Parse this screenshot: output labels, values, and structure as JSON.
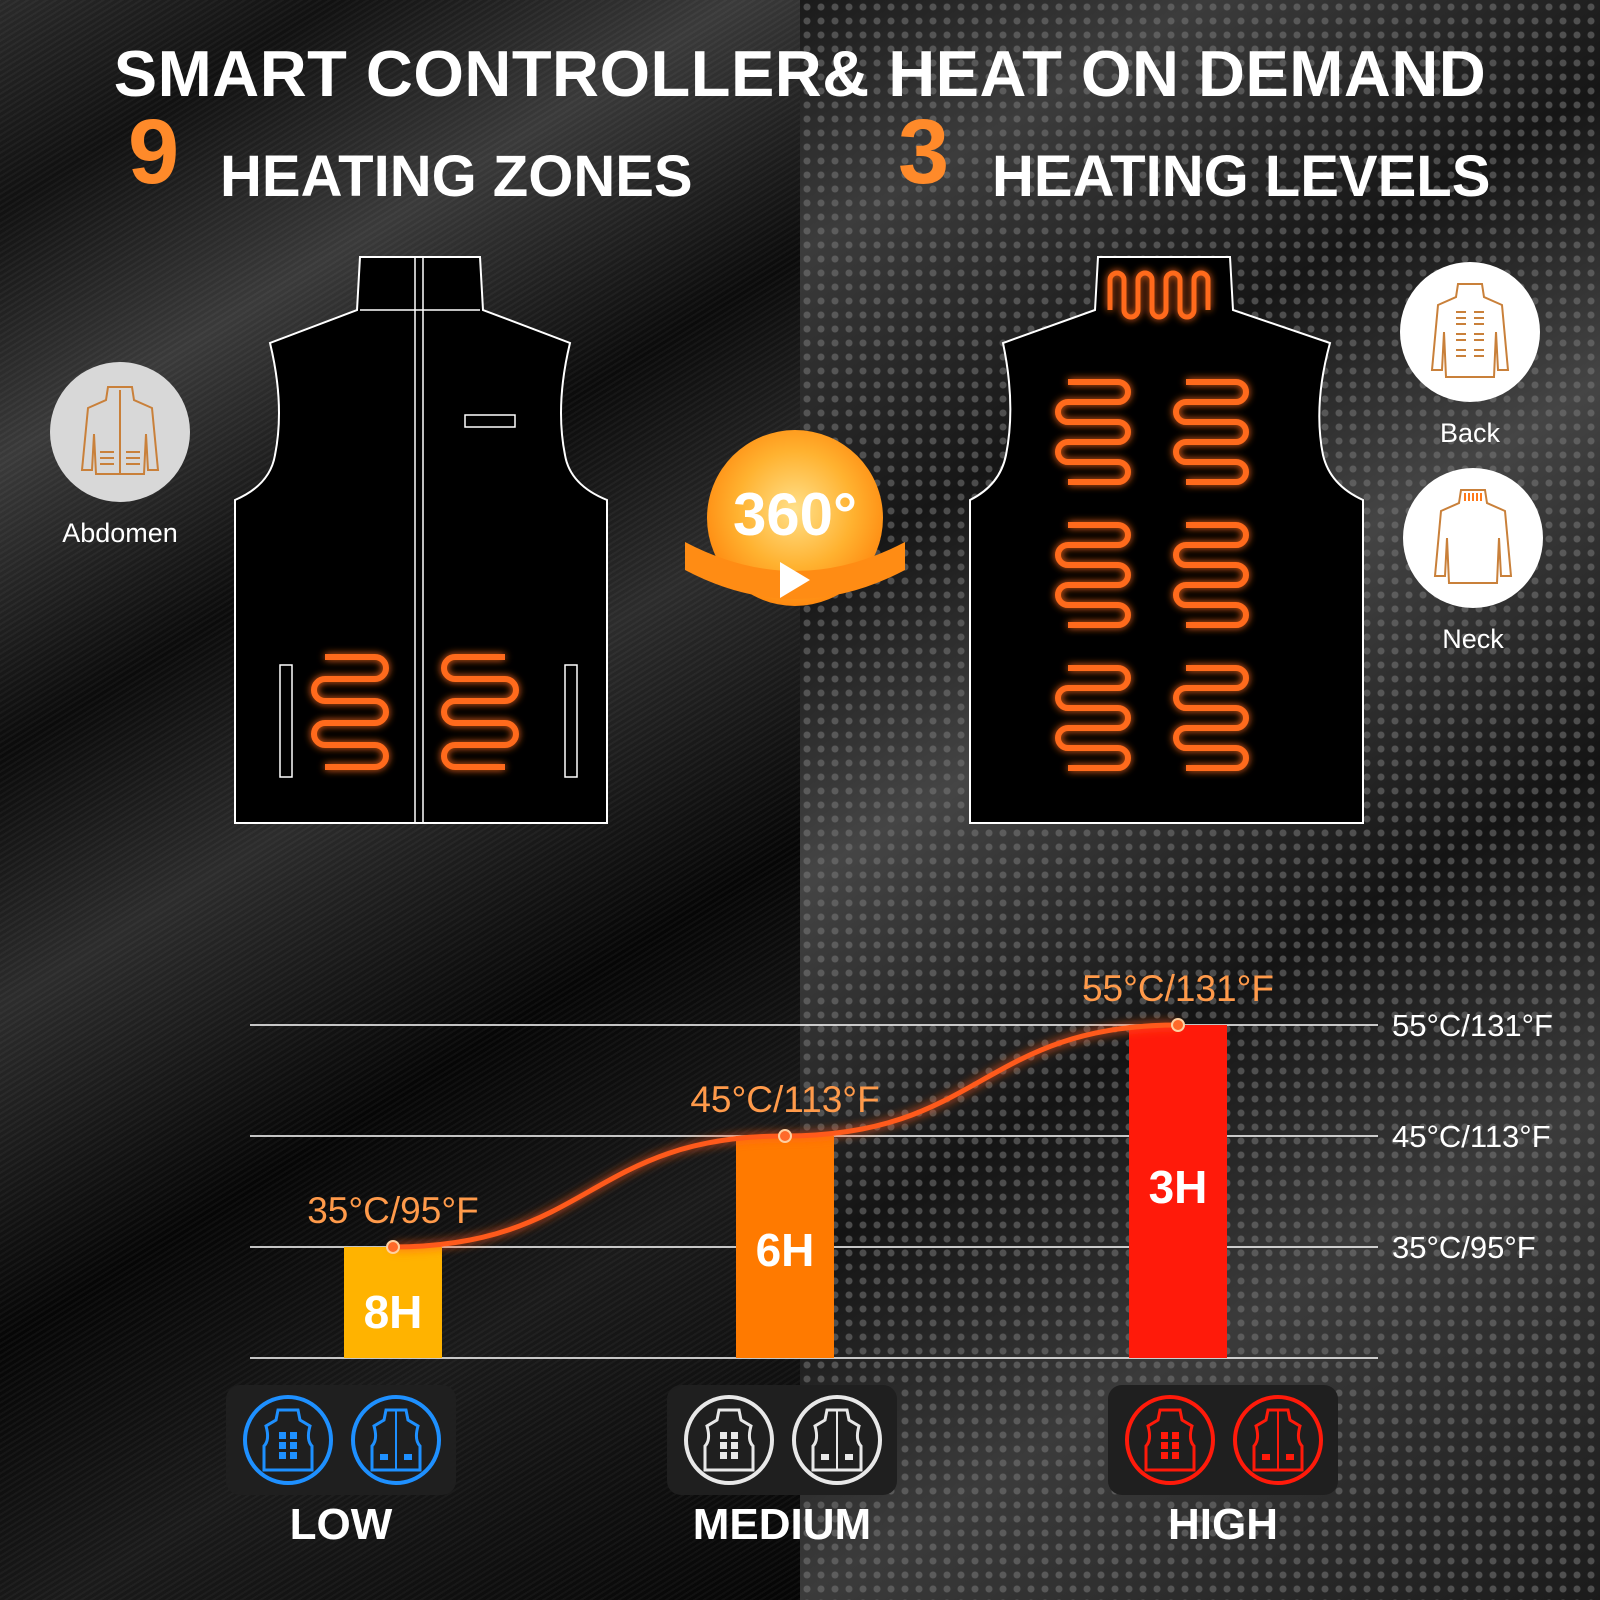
{
  "title": "SMART CONTROLLER& HEAT ON DEMAND",
  "zones": {
    "number": "9",
    "label": "HEATING ZONES"
  },
  "levels_header": {
    "number": "3",
    "label": "HEATING LEVELS"
  },
  "badge_360": "360°",
  "zone_badges": [
    {
      "label": "Abdomen",
      "icon": "jacket-front-icon"
    },
    {
      "label": "Back",
      "icon": "jacket-back-icon"
    },
    {
      "label": "Neck",
      "icon": "jacket-neck-icon"
    }
  ],
  "chart_data": {
    "type": "bar",
    "categories": [
      "LOW",
      "MEDIUM",
      "HIGH"
    ],
    "series": [
      {
        "values": [
          35,
          45,
          55
        ]
      }
    ],
    "point_labels": [
      "35°C/95°F",
      "45°C/113°F",
      "55°C/131°F"
    ],
    "bar_labels": [
      "8H",
      "6H",
      "3H"
    ],
    "y_ticks": [
      {
        "value": 55,
        "label": "55°C/131°F"
      },
      {
        "value": 45,
        "label": "45°C/113°F"
      },
      {
        "value": 35,
        "label": "35°C/95°F"
      }
    ],
    "ylim": [
      25,
      55
    ],
    "colors": [
      "#ffb300",
      "#ff7a00",
      "#ff1a0a"
    ],
    "line_color": "#ff5a1a"
  },
  "level_icons": [
    {
      "name": "LOW",
      "color": "#1e90ff"
    },
    {
      "name": "MEDIUM",
      "color": "#e8e8e8"
    },
    {
      "name": "HIGH",
      "color": "#ff1a0a"
    }
  ]
}
